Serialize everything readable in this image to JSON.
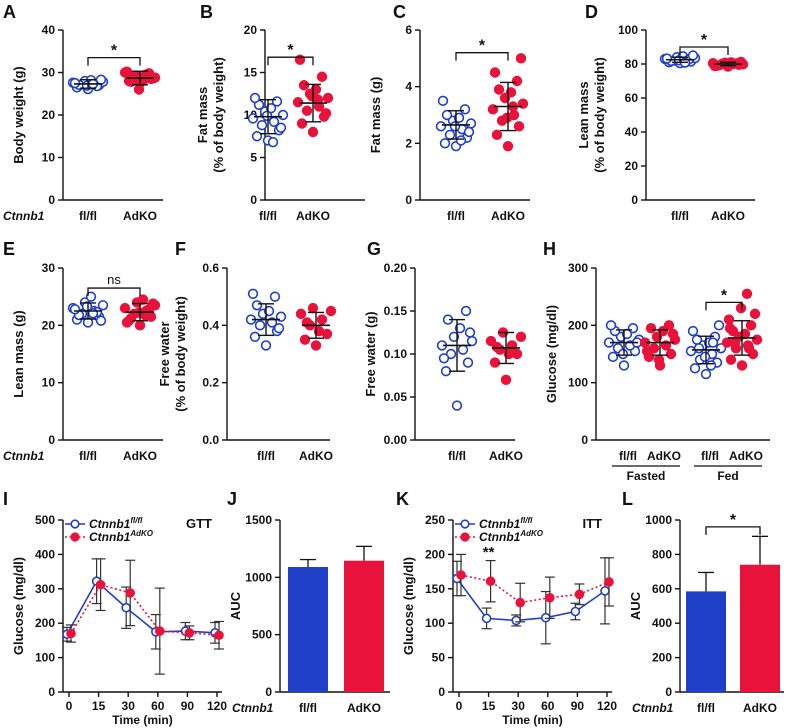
{
  "colors": {
    "blue": "#1f3fc8",
    "red": "#e8123a",
    "axis": "#111111"
  },
  "genotype_label": "Ctnnb1",
  "chart_data": [
    {
      "type": "scatter",
      "panel": "A",
      "ylabel": "Body weight (g)",
      "ylim": [
        0,
        40
      ],
      "yticks": [
        0,
        10,
        20,
        30,
        40
      ],
      "categories": [
        "fl/fl",
        "AdKO"
      ],
      "show_genotype": true,
      "series": [
        {
          "name": "fl/fl",
          "values": [
            26.1,
            26.5,
            27.0,
            27.2,
            27.4,
            27.6,
            27.8,
            28.0,
            28.2,
            27.1,
            26.8,
            27.5,
            28.3,
            26.9,
            27.3
          ],
          "mean": 27.3,
          "sd": 1.0
        },
        {
          "name": "AdKO",
          "values": [
            27.5,
            28.0,
            28.5,
            29.0,
            29.5,
            30.0,
            28.8,
            29.2,
            28.1,
            27.8,
            29.8,
            30.2,
            28.6,
            26.0,
            29.1
          ],
          "mean": 28.7,
          "sd": 1.6
        }
      ],
      "sig": {
        "label": "*",
        "y": 33.5
      }
    },
    {
      "type": "scatter",
      "panel": "B",
      "ylabel": "Fat mass",
      "ylabel2": "(% of body weight)",
      "ylim": [
        0,
        20
      ],
      "yticks": [
        0,
        5,
        10,
        15,
        20
      ],
      "categories": [
        "fl/fl",
        "AdKO"
      ],
      "show_genotype": false,
      "series": [
        {
          "name": "fl/fl",
          "values": [
            7.0,
            7.5,
            8.2,
            8.8,
            9.2,
            9.6,
            10.0,
            10.4,
            10.8,
            11.2,
            11.6,
            12.0,
            8.5,
            9.9,
            6.8
          ],
          "mean": 9.8,
          "sd": 2.0
        },
        {
          "name": "AdKO",
          "values": [
            8.0,
            9.0,
            9.8,
            10.5,
            11.0,
            11.5,
            12.0,
            12.5,
            13.0,
            13.5,
            14.5,
            16.5,
            10.2,
            12.2,
            11.8
          ],
          "mean": 11.4,
          "sd": 2.2
        }
      ],
      "sig": {
        "label": "*",
        "y": 16.8
      }
    },
    {
      "type": "scatter",
      "panel": "C",
      "ylabel": "Fat mass (g)",
      "ylim": [
        0,
        6
      ],
      "yticks": [
        0,
        2,
        4,
        6
      ],
      "categories": [
        "fl/fl",
        "AdKO"
      ],
      "show_genotype": false,
      "series": [
        {
          "name": "fl/fl",
          "values": [
            1.9,
            2.0,
            2.2,
            2.3,
            2.5,
            2.6,
            2.7,
            2.8,
            2.9,
            3.0,
            3.2,
            3.5,
            2.4,
            2.6,
            2.1
          ],
          "mean": 2.65,
          "sd": 0.5
        },
        {
          "name": "AdKO",
          "values": [
            1.9,
            2.3,
            2.6,
            2.8,
            3.0,
            3.2,
            3.4,
            3.6,
            3.8,
            3.9,
            4.2,
            4.5,
            5.0,
            2.9,
            3.3
          ],
          "mean": 3.3,
          "sd": 0.85
        },
        {
          "name": "",
          "values": []
        }
      ],
      "sig": {
        "label": "*",
        "y": 5.2
      }
    },
    {
      "type": "scatter",
      "panel": "D",
      "ylabel": "Lean mass",
      "ylabel2": "(% of body weight)",
      "ylim": [
        0,
        100
      ],
      "yticks": [
        0,
        20,
        40,
        60,
        80,
        100
      ],
      "categories": [
        "fl/fl",
        "AdKO"
      ],
      "show_genotype": false,
      "series": [
        {
          "name": "fl/fl",
          "values": [
            80.5,
            81.0,
            81.5,
            82.0,
            82.5,
            83.0,
            83.5,
            84.0,
            84.5,
            81.8,
            82.8,
            83.2,
            85.0,
            82.2,
            80.8
          ],
          "mean": 82.5,
          "sd": 1.5
        },
        {
          "name": "AdKO",
          "values": [
            78.5,
            79.0,
            79.5,
            80.0,
            80.2,
            80.5,
            79.8,
            80.8,
            81.0,
            79.2,
            80.4,
            78.8,
            81.2,
            79.6,
            80.0
          ],
          "mean": 80.0,
          "sd": 1.0
        }
      ],
      "sig": {
        "label": "*",
        "y": 90
      }
    },
    {
      "type": "scatter",
      "panel": "E",
      "ylabel": "Lean mass (g)",
      "ylim": [
        0,
        30
      ],
      "yticks": [
        0,
        10,
        20,
        30
      ],
      "categories": [
        "fl/fl",
        "AdKO"
      ],
      "show_genotype": true,
      "series": [
        {
          "name": "fl/fl",
          "values": [
            20.5,
            21.0,
            21.5,
            22.0,
            22.5,
            23.0,
            23.5,
            24.0,
            25.0,
            21.8,
            22.3,
            22.8,
            20.8,
            23.3,
            22.1
          ],
          "mean": 22.5,
          "sd": 1.4
        },
        {
          "name": "AdKO",
          "values": [
            20.0,
            20.8,
            21.5,
            22.0,
            22.5,
            23.0,
            23.5,
            24.0,
            24.5,
            21.2,
            22.8,
            20.5,
            23.8,
            22.2,
            21.8
          ],
          "mean": 22.3,
          "sd": 1.5
        }
      ],
      "sig": {
        "label": "ns",
        "y": 26.5
      }
    },
    {
      "type": "scatter",
      "panel": "F",
      "ylabel": "Free water",
      "ylabel2": "(% of body weight)",
      "ylim": [
        0,
        0.6
      ],
      "yticks": [
        0.0,
        0.2,
        0.4,
        0.6
      ],
      "tick_decimals": 1,
      "categories": [
        "fl/fl",
        "AdKO"
      ],
      "show_genotype": false,
      "series": [
        {
          "name": "fl/fl",
          "values": [
            0.33,
            0.36,
            0.38,
            0.4,
            0.41,
            0.42,
            0.43,
            0.44,
            0.45,
            0.47,
            0.5,
            0.51,
            0.39
          ],
          "mean": 0.42,
          "sd": 0.055
        },
        {
          "name": "AdKO",
          "values": [
            0.33,
            0.35,
            0.37,
            0.4,
            0.42,
            0.44,
            0.45,
            0.46,
            0.38,
            0.41
          ],
          "mean": 0.4,
          "sd": 0.045
        }
      ]
    },
    {
      "type": "scatter",
      "panel": "G",
      "ylabel": "Free water (g)",
      "ylim": [
        0,
        0.2
      ],
      "yticks": [
        0.0,
        0.05,
        0.1,
        0.15,
        0.2
      ],
      "tick_decimals": 2,
      "categories": [
        "fl/fl",
        "AdKO"
      ],
      "show_genotype": false,
      "series": [
        {
          "name": "fl/fl",
          "values": [
            0.04,
            0.08,
            0.09,
            0.1,
            0.105,
            0.11,
            0.115,
            0.12,
            0.13,
            0.14,
            0.15,
            0.095,
            0.125
          ],
          "mean": 0.11,
          "sd": 0.03
        },
        {
          "name": "AdKO",
          "values": [
            0.07,
            0.09,
            0.1,
            0.105,
            0.11,
            0.115,
            0.12,
            0.125,
            0.1,
            0.108
          ],
          "mean": 0.107,
          "sd": 0.018
        }
      ]
    },
    {
      "type": "scatter",
      "panel": "H",
      "ylabel": "Glucose  (mg/dl)",
      "ylim": [
        0,
        300
      ],
      "yticks": [
        0,
        100,
        200,
        300
      ],
      "categories": [
        "fl/fl",
        "AdKO",
        "fl/fl",
        "AdKO"
      ],
      "groups": [
        "Fasted",
        "Fed"
      ],
      "show_genotype": false,
      "series": [
        {
          "name": "Fasted fl/fl",
          "values": [
            130,
            145,
            155,
            160,
            165,
            170,
            175,
            180,
            185,
            190,
            195,
            200,
            170,
            150
          ],
          "mean": 170,
          "sd": 22
        },
        {
          "name": "Fasted AdKO",
          "values": [
            130,
            145,
            150,
            160,
            165,
            170,
            175,
            180,
            190,
            195,
            200,
            155,
            185,
            140
          ],
          "mean": 170,
          "sd": 22
        },
        {
          "name": "Fed fl/fl",
          "values": [
            115,
            125,
            135,
            140,
            150,
            155,
            160,
            165,
            170,
            175,
            180,
            190,
            200,
            145,
            130,
            160,
            170
          ],
          "mean": 157,
          "sd": 24
        },
        {
          "name": "Fed AdKO",
          "values": [
            130,
            140,
            150,
            160,
            165,
            170,
            175,
            180,
            185,
            190,
            200,
            210,
            220,
            230,
            255,
            170,
            160,
            195
          ],
          "mean": 178,
          "sd": 30
        }
      ],
      "sig": {
        "label": "*",
        "y": 240,
        "between": [
          2,
          3
        ]
      }
    },
    {
      "type": "line",
      "panel": "I",
      "title": "GTT",
      "xlabel": "Time (min)",
      "ylabel": "Glucose  (mg/dl)",
      "x": [
        0,
        15,
        30,
        60,
        90,
        120
      ],
      "ylim": [
        0,
        500
      ],
      "yticks": [
        0,
        100,
        200,
        300,
        400,
        500
      ],
      "series": [
        {
          "name": "Ctnnb1",
          "sup": "fl/fl",
          "color": "blue",
          "style": "solid",
          "values": [
            168,
            322,
            245,
            175,
            177,
            172
          ],
          "err": [
            20,
            65,
            60,
            50,
            25,
            30
          ]
        },
        {
          "name": "Ctnnb1",
          "sup": "AdKO",
          "color": "red",
          "style": "dotted",
          "values": [
            170,
            312,
            288,
            177,
            172,
            165
          ],
          "err": [
            25,
            75,
            95,
            125,
            20,
            40
          ]
        }
      ]
    },
    {
      "type": "bar",
      "panel": "J",
      "ylabel": "AUC",
      "categories": [
        "fl/fl",
        "AdKO"
      ],
      "show_genotype": true,
      "ylim": [
        0,
        1500
      ],
      "yticks": [
        0,
        500,
        1000,
        1500
      ],
      "values": [
        1090,
        1145
      ],
      "err": [
        65,
        125
      ],
      "colors": [
        "blue",
        "red"
      ]
    },
    {
      "type": "line",
      "panel": "K",
      "title": "ITT",
      "xlabel": "Time (min)",
      "ylabel": "Glucose  (mg/dl)",
      "x": [
        0,
        15,
        30,
        60,
        90,
        120
      ],
      "ylim": [
        0,
        250
      ],
      "yticks": [
        0,
        50,
        100,
        150,
        200,
        250
      ],
      "series": [
        {
          "name": "Ctnnb1",
          "sup": "fl/fl",
          "color": "blue",
          "style": "solid",
          "values": [
            165,
            107,
            104,
            108,
            117,
            147
          ],
          "err": [
            25,
            15,
            8,
            38,
            12,
            48
          ]
        },
        {
          "name": "Ctnnb1",
          "sup": "AdKO",
          "color": "red",
          "style": "dotted",
          "values": [
            170,
            161,
            130,
            137,
            142,
            160
          ],
          "err": [
            30,
            30,
            28,
            30,
            15,
            35
          ]
        }
      ],
      "annotations": [
        {
          "x": 15,
          "y": 196,
          "label": "**"
        }
      ]
    },
    {
      "type": "bar",
      "panel": "L",
      "ylabel": "AUC",
      "categories": [
        "fl/fl",
        "AdKO"
      ],
      "show_genotype": true,
      "ylim": [
        0,
        1000
      ],
      "yticks": [
        0,
        200,
        400,
        600,
        800,
        1000
      ],
      "values": [
        585,
        740
      ],
      "err": [
        110,
        165
      ],
      "colors": [
        "blue",
        "red"
      ],
      "sig": {
        "label": "*",
        "y": 960
      }
    }
  ]
}
